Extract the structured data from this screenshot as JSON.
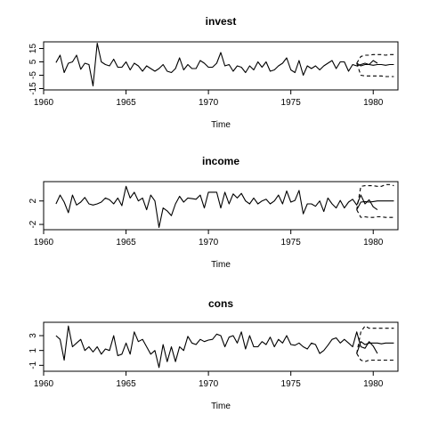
{
  "chart_data": [
    {
      "type": "line",
      "title": "invest",
      "xlabel": "Time",
      "ylabel": "",
      "xlim": [
        1960.0,
        1981.5
      ],
      "ylim": [
        -16,
        20
      ],
      "x_ticks": [
        1960,
        1965,
        1970,
        1975,
        1980
      ],
      "x_tick_labels": [
        "1960",
        "1965",
        "1970",
        "1975",
        "1980"
      ],
      "y_ticks": [
        -15,
        -5,
        5,
        15
      ],
      "y_tick_labels": [
        "-15",
        "-5",
        "5",
        "15"
      ],
      "series": [
        {
          "role": "observed",
          "x_start": 1960.75,
          "x_step": 0.25,
          "values": [
            4.5,
            10,
            -3,
            4,
            5,
            10,
            -0.5,
            4,
            3,
            -13,
            19,
            5,
            3,
            2,
            7,
            1,
            1,
            5,
            -1,
            4,
            2,
            -2,
            2,
            0,
            -2,
            0,
            3,
            -2,
            -3,
            0,
            8,
            -1,
            3,
            0,
            0,
            6,
            4,
            1,
            1,
            4,
            12,
            2,
            3,
            -2,
            2,
            1,
            -3,
            2,
            -1,
            5,
            1,
            5,
            -2,
            -1,
            2,
            4,
            8,
            -1,
            -3,
            6,
            -5,
            2,
            0,
            2,
            -1,
            2,
            4,
            6,
            0,
            5,
            5,
            -2,
            3,
            2,
            3,
            4,
            3,
            6,
            4
          ]
        },
        {
          "role": "forecast",
          "x_start": 1979.0,
          "x_step": 0.25,
          "values": [
            4,
            2,
            3,
            3,
            2.5,
            3,
            3,
            2.5,
            3,
            3
          ]
        },
        {
          "role": "upper-bound",
          "x_start": 1979.0,
          "x_step": 0.25,
          "values": [
            4,
            9,
            10,
            10,
            10.5,
            10.5,
            10.5,
            10,
            10.5,
            10.5
          ]
        },
        {
          "role": "lower-bound",
          "x_start": 1979.0,
          "x_step": 0.25,
          "values": [
            4,
            -5,
            -5.5,
            -5.5,
            -5.5,
            -5.5,
            -5.5,
            -6,
            -6,
            -6
          ]
        }
      ]
    },
    {
      "type": "line",
      "title": "income",
      "xlabel": "Time",
      "ylabel": "",
      "xlim": [
        1960.0,
        1981.5
      ],
      "ylim": [
        -2.9,
        5.3
      ],
      "x_ticks": [
        1960,
        1965,
        1970,
        1975,
        1980
      ],
      "x_tick_labels": [
        "1960",
        "1965",
        "1970",
        "1975",
        "1980"
      ],
      "y_ticks": [
        -2,
        2
      ],
      "y_tick_labels": [
        "-2",
        "2"
      ],
      "series": [
        {
          "role": "observed",
          "x_start": 1960.75,
          "x_step": 0.25,
          "values": [
            1.5,
            3,
            1.8,
            0,
            3,
            1.3,
            1.8,
            2.6,
            1.5,
            1.3,
            1.5,
            1.8,
            2.5,
            2.2,
            1.5,
            2.5,
            1.2,
            4.5,
            2.5,
            3.5,
            2,
            2.5,
            0.5,
            3,
            2,
            -2.5,
            0.8,
            0.3,
            -0.5,
            1.5,
            2.8,
            1.8,
            2.5,
            2.4,
            2.3,
            3,
            0.8,
            3.5,
            3.5,
            3.5,
            0.8,
            3.5,
            1.5,
            3.2,
            2.5,
            3.3,
            2,
            1.5,
            2.5,
            1.5,
            2,
            2.3,
            1.5,
            2,
            3,
            1.5,
            3.7,
            1.8,
            2.1,
            3.8,
            -0.2,
            1.5,
            1.5,
            1.1,
            2,
            0.2,
            2.5,
            1.5,
            0.8,
            2.1,
            0.8,
            1.8,
            2.3,
            1.3,
            3,
            1.5,
            2.2,
            1,
            0.5
          ]
        },
        {
          "role": "forecast",
          "x_start": 1979.0,
          "x_step": 0.25,
          "values": [
            0.5,
            1.8,
            1.9,
            1.8,
            1.9,
            2,
            2,
            2,
            2,
            2
          ]
        },
        {
          "role": "upper-bound",
          "x_start": 1979.0,
          "x_step": 0.25,
          "values": [
            0.5,
            4.5,
            4.6,
            4.6,
            4.6,
            4.5,
            4.5,
            4.8,
            4.8,
            4.6
          ]
        },
        {
          "role": "lower-bound",
          "x_start": 1979.0,
          "x_step": 0.25,
          "values": [
            0.5,
            -0.8,
            -0.7,
            -0.8,
            -0.8,
            -0.7,
            -0.7,
            -0.8,
            -0.8,
            -0.8
          ]
        }
      ]
    },
    {
      "type": "line",
      "title": "cons",
      "xlabel": "Time",
      "ylabel": "",
      "xlim": [
        1960.0,
        1981.5
      ],
      "ylim": [
        -1.8,
        4.8
      ],
      "x_ticks": [
        1960,
        1965,
        1970,
        1975,
        1980
      ],
      "x_tick_labels": [
        "1960",
        "1965",
        "1970",
        "1975",
        "1980"
      ],
      "y_ticks": [
        -1,
        1,
        3
      ],
      "y_tick_labels": [
        "-1",
        "1",
        "3"
      ],
      "series": [
        {
          "role": "observed",
          "x_start": 1960.75,
          "x_step": 0.25,
          "values": [
            3,
            2.5,
            -0.3,
            4.3,
            1.5,
            2,
            2.5,
            1,
            1.5,
            0.8,
            1.5,
            0.5,
            1.2,
            1,
            3,
            0.3,
            0.5,
            2,
            0.5,
            3.5,
            2.2,
            2.5,
            1.5,
            0.5,
            1,
            -1.3,
            1.8,
            -0.5,
            1.5,
            -0.5,
            1.5,
            1,
            2.9,
            2,
            1.8,
            2.5,
            2.2,
            2.4,
            2.5,
            3.2,
            3,
            1.5,
            2.8,
            3,
            2,
            3.5,
            1.2,
            3,
            1.5,
            1.5,
            2.2,
            1.8,
            2.8,
            1.5,
            2.5,
            2,
            3,
            1.8,
            1.7,
            2,
            1.5,
            1.2,
            2,
            1.8,
            0.6,
            1,
            1.7,
            2.5,
            2.7,
            2,
            2.5,
            2,
            1.5,
            3.5,
            1.5,
            1.3,
            2.2,
            1.6,
            0.6
          ]
        },
        {
          "role": "forecast",
          "x_start": 1979.0,
          "x_step": 0.25,
          "values": [
            0.6,
            2.2,
            1.8,
            2,
            2,
            2,
            1.9,
            2,
            2,
            2
          ]
        },
        {
          "role": "upper-bound",
          "x_start": 1979.0,
          "x_step": 0.25,
          "values": [
            0.6,
            3.5,
            4.3,
            4.0,
            4.0,
            4.0,
            4.0,
            4.0,
            4.0,
            4.0
          ]
        },
        {
          "role": "lower-bound",
          "x_start": 1979.0,
          "x_step": 0.25,
          "values": [
            0.6,
            -0.3,
            -0.5,
            -0.3,
            -0.3,
            -0.3,
            -0.3,
            -0.3,
            -0.3,
            -0.3
          ]
        }
      ]
    }
  ]
}
